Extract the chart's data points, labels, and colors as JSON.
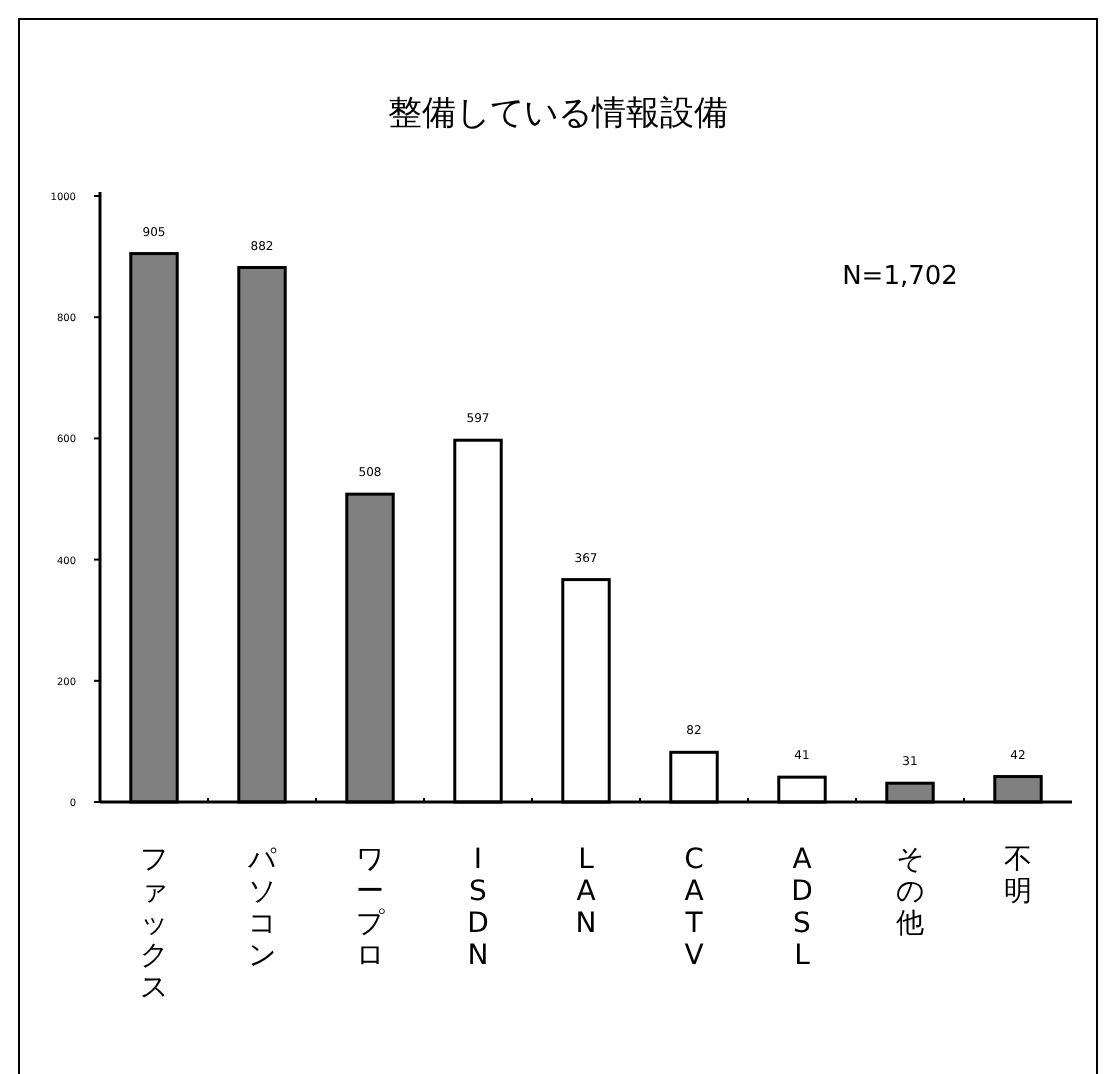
{
  "chart_data": {
    "type": "bar",
    "title": "整備している情報設備",
    "categories": [
      "ファックス",
      "パソコン",
      "ワープロ",
      "ISDN",
      "LAN",
      "CATV",
      "ADSL",
      "その他",
      "不明"
    ],
    "values": [
      905,
      882,
      508,
      597,
      367,
      82,
      41,
      31,
      42
    ],
    "colors": [
      "#808080",
      "#808080",
      "#808080",
      "#ffffff",
      "#ffffff",
      "#ffffff",
      "#ffffff",
      "#808080",
      "#808080"
    ],
    "ylim": [
      0,
      1000
    ],
    "yticks": [
      0,
      200,
      400,
      600,
      800,
      1000
    ],
    "data_labels": true,
    "annotations": [
      "N=1,702"
    ]
  }
}
